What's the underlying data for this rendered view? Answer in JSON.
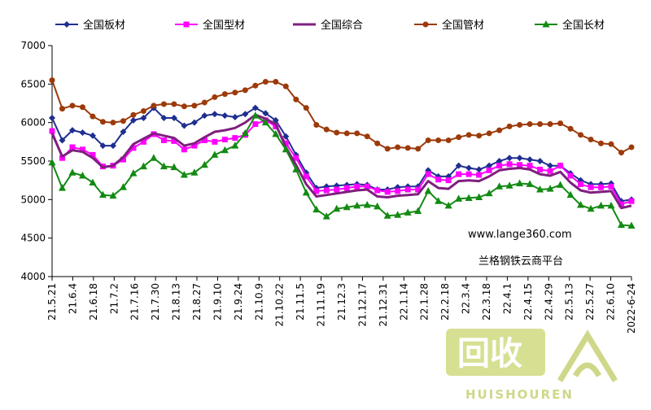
{
  "chart_data": {
    "type": "line",
    "ylim": [
      4000,
      7000
    ],
    "yticks": [
      4000,
      4500,
      5000,
      5500,
      6000,
      6500,
      7000
    ],
    "x_tick_labels": [
      "21.5.21",
      "21.6.4",
      "21.6.18",
      "21.7.2",
      "21.7.16",
      "21.7.30",
      "21.8.13",
      "21.8.27",
      "21.9.10",
      "21.9.24",
      "21.10.9",
      "21.10.22",
      "21.11.5",
      "21.11.19",
      "21.12.3",
      "21.12.17",
      "21.12.31",
      "22.1.14",
      "22.1.28",
      "22.2.18",
      "22.3.4",
      "22.3.18",
      "22.4.1",
      "22.4.15",
      "22.4.29",
      "22.5.13",
      "22.5.27",
      "22.6.10",
      "2022-6-24"
    ],
    "grid": false,
    "legend_position": "top",
    "series": [
      {
        "name": "全国板材",
        "color": "#1f2f8f",
        "marker": "diamond",
        "values": [
          6060,
          5770,
          5900,
          5870,
          5830,
          5700,
          5700,
          5880,
          6030,
          6060,
          6190,
          6060,
          6060,
          5960,
          6000,
          6090,
          6110,
          6090,
          6070,
          6110,
          6190,
          6120,
          6030,
          5820,
          5580,
          5350,
          5150,
          5170,
          5180,
          5190,
          5200,
          5190,
          5130,
          5130,
          5160,
          5170,
          5170,
          5380,
          5300,
          5300,
          5440,
          5410,
          5390,
          5440,
          5500,
          5540,
          5540,
          5520,
          5500,
          5440,
          5440,
          5340,
          5250,
          5200,
          5200,
          5210,
          4980,
          5000
        ]
      },
      {
        "name": "全国型材",
        "color": "#ff00ff",
        "marker": "square",
        "values": [
          5890,
          5540,
          5680,
          5650,
          5580,
          5430,
          5440,
          5520,
          5670,
          5750,
          5850,
          5770,
          5760,
          5650,
          5700,
          5770,
          5750,
          5780,
          5800,
          5840,
          5980,
          6030,
          5950,
          5730,
          5540,
          5300,
          5110,
          5120,
          5130,
          5150,
          5170,
          5170,
          5120,
          5100,
          5110,
          5130,
          5130,
          5330,
          5260,
          5250,
          5330,
          5330,
          5320,
          5380,
          5440,
          5460,
          5450,
          5440,
          5390,
          5370,
          5440,
          5310,
          5200,
          5160,
          5160,
          5170,
          4940,
          4980
        ]
      },
      {
        "name": "全国综合",
        "color": "#7f1f7f",
        "marker": "none",
        "values": [
          5860,
          5560,
          5640,
          5620,
          5540,
          5420,
          5440,
          5550,
          5720,
          5790,
          5860,
          5830,
          5800,
          5700,
          5730,
          5810,
          5880,
          5900,
          5930,
          6000,
          6100,
          6050,
          5980,
          5680,
          5450,
          5200,
          5040,
          5060,
          5080,
          5100,
          5120,
          5130,
          5040,
          5030,
          5050,
          5060,
          5070,
          5240,
          5150,
          5140,
          5240,
          5250,
          5240,
          5300,
          5380,
          5400,
          5410,
          5390,
          5330,
          5310,
          5360,
          5220,
          5120,
          5090,
          5100,
          5110,
          4890,
          4920
        ]
      },
      {
        "name": "全国管材",
        "color": "#9c3a0a",
        "marker": "circle",
        "values": [
          6550,
          6180,
          6220,
          6200,
          6080,
          6010,
          6000,
          6020,
          6100,
          6150,
          6220,
          6240,
          6240,
          6210,
          6220,
          6260,
          6330,
          6370,
          6390,
          6420,
          6480,
          6530,
          6530,
          6470,
          6300,
          6190,
          5970,
          5910,
          5870,
          5860,
          5860,
          5820,
          5730,
          5660,
          5680,
          5670,
          5660,
          5770,
          5770,
          5770,
          5810,
          5840,
          5830,
          5860,
          5900,
          5950,
          5970,
          5980,
          5980,
          5980,
          5990,
          5920,
          5840,
          5780,
          5730,
          5720,
          5610,
          5680
        ]
      },
      {
        "name": "全国长材",
        "color": "#138a13",
        "marker": "triangle",
        "values": [
          5480,
          5150,
          5350,
          5310,
          5220,
          5060,
          5050,
          5160,
          5340,
          5430,
          5540,
          5430,
          5420,
          5320,
          5350,
          5450,
          5580,
          5640,
          5700,
          5860,
          6090,
          6000,
          5850,
          5650,
          5390,
          5090,
          4870,
          4780,
          4880,
          4900,
          4920,
          4930,
          4910,
          4790,
          4800,
          4830,
          4850,
          5110,
          4980,
          4920,
          5010,
          5020,
          5030,
          5080,
          5170,
          5180,
          5210,
          5200,
          5130,
          5140,
          5190,
          5060,
          4930,
          4880,
          4920,
          4920,
          4670,
          4660
        ]
      }
    ]
  },
  "annotation": {
    "url": "www.lange360.com",
    "platform": "兰格钢铁云商平台"
  },
  "watermark": {
    "cn": "回收",
    "en": "HUISHOUREN"
  }
}
